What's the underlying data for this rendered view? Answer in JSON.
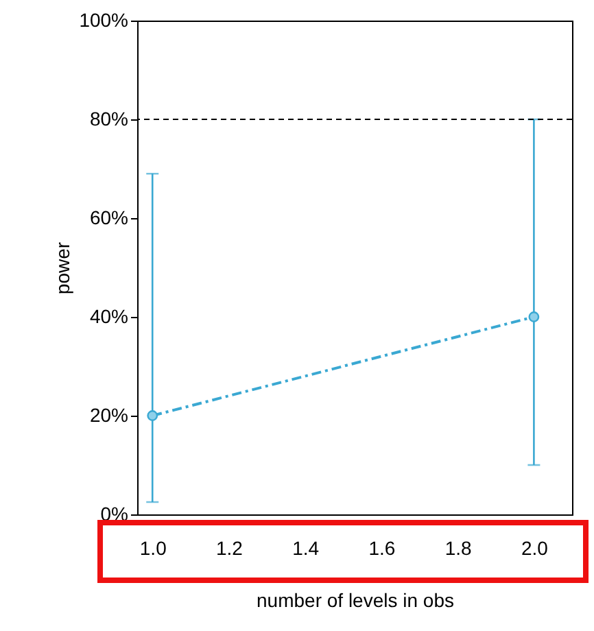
{
  "chart_data": {
    "type": "line",
    "xlabel": "number of levels in obs",
    "ylabel": "power",
    "x": [
      1,
      2
    ],
    "series": [
      {
        "color": "#3aa8d2",
        "values": [
          20,
          40
        ],
        "errors": [
          [
            2.5,
            69
          ],
          [
            10,
            80
          ]
        ]
      }
    ],
    "xlim": [
      0.96,
      2.1
    ],
    "xticks": [
      {
        "value": 1,
        "label": "1.0"
      },
      {
        "value": 1.2,
        "label": "1.2"
      },
      {
        "value": 1.4,
        "label": "1.4"
      },
      {
        "value": 1.6,
        "label": "1.6"
      },
      {
        "value": 1.8,
        "label": "1.8"
      },
      {
        "value": 2,
        "label": "2.0"
      }
    ],
    "ylim": [
      0,
      100
    ],
    "yticks": [
      {
        "value": 0,
        "label": "0%"
      },
      {
        "value": 20,
        "label": "20%"
      },
      {
        "value": 40,
        "label": "40%"
      },
      {
        "value": 60,
        "label": "60%"
      },
      {
        "value": 80,
        "label": "80%"
      },
      {
        "value": 100,
        "label": "100%"
      }
    ],
    "ref_lines": [
      {
        "axis": "y",
        "value": 80,
        "color": "#000000",
        "line_style": "dashed"
      }
    ],
    "marker": "circle",
    "line_style": "dashed",
    "grid": false
  }
}
